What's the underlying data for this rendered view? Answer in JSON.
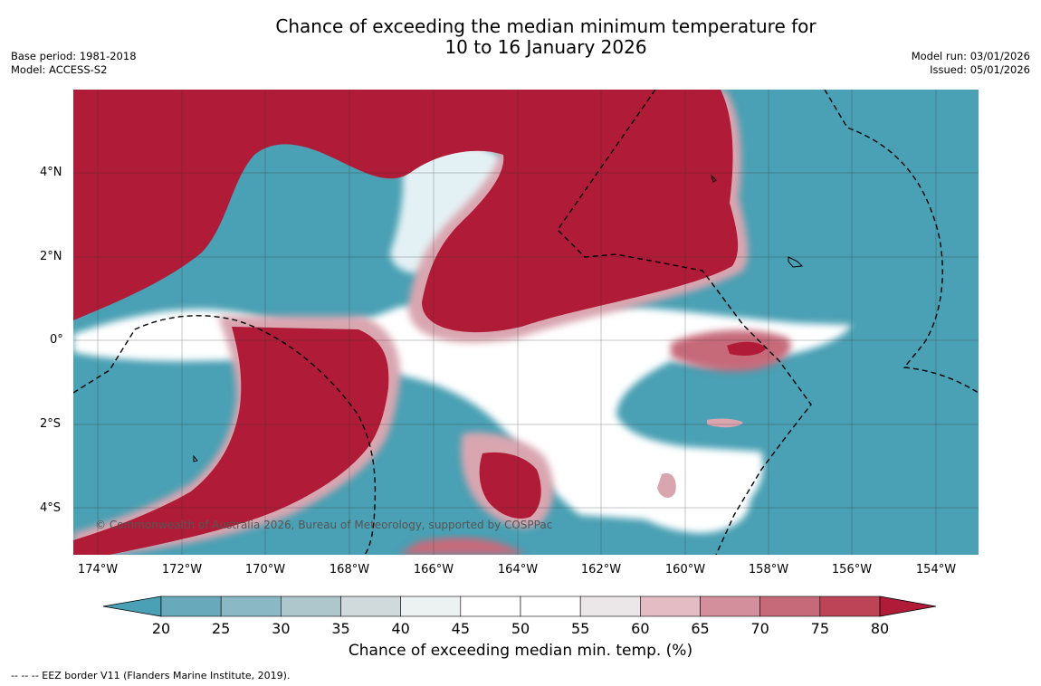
{
  "title": {
    "line1": "Chance of exceeding the median minimum temperature for",
    "line2": "10 to 16 January 2026"
  },
  "meta": {
    "base_period": "Base period: 1981-2018",
    "model": "Model: ACCESS-S2",
    "model_run": "Model run: 03/01/2026",
    "issued": "Issued: 05/01/2026"
  },
  "map": {
    "copyright": "© Commonwealth of Australia 2026, Bureau of Meteorology, supported by COSPPac",
    "lat_labels": [
      "4°N",
      "2°N",
      "0°",
      "2°S",
      "4°S"
    ],
    "lon_labels": [
      "174°W",
      "172°W",
      "170°W",
      "168°W",
      "166°W",
      "164°W",
      "162°W",
      "160°W",
      "158°W",
      "156°W",
      "154°W"
    ],
    "colors": {
      "below_strong": "#4aa0b4",
      "above_strong": "#b01c38",
      "neutral": "#ffffff"
    }
  },
  "colorbar": {
    "ticks": [
      "20",
      "25",
      "30",
      "35",
      "40",
      "45",
      "50",
      "55",
      "60",
      "65",
      "70",
      "75",
      "80"
    ],
    "colors": [
      "#4aa0b4",
      "#68aabb",
      "#8ab8c4",
      "#aec7cd",
      "#d0dadd",
      "#ecf1f2",
      "#ffffff",
      "#ffffff",
      "#ebe6e8",
      "#e3bcc4",
      "#d48f9c",
      "#c66a7a",
      "#bd4457",
      "#b01c38"
    ],
    "label": "Chance of exceeding median min. temp. (%)"
  },
  "footer": "--  --  -- EEZ border V11 (Flanders Marine Institute, 2019)."
}
